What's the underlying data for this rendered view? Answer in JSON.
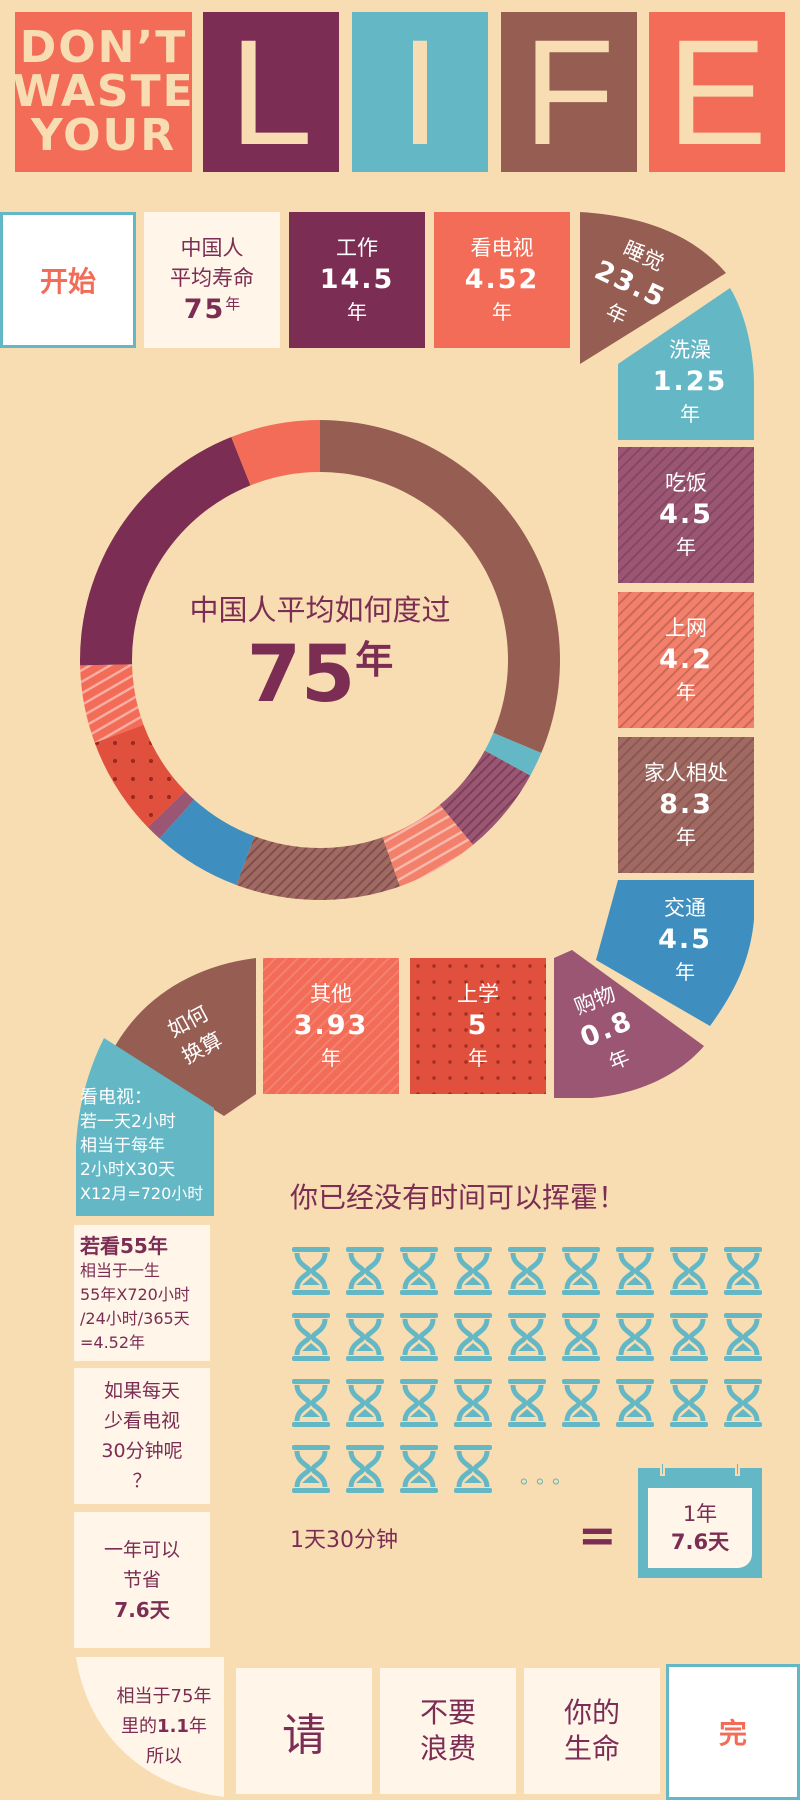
{
  "header": {
    "dont_waste_lines": [
      "DON’T",
      "WASTE",
      "YOUR"
    ],
    "letters": [
      "L",
      "I",
      "F",
      "E"
    ]
  },
  "start_label": "开始",
  "end_label": "完",
  "lifespan": {
    "line1": "中国人",
    "line2": "平均寿命",
    "value": "75",
    "unit": "年"
  },
  "segments": {
    "work": {
      "label": "工作",
      "value": "14.5",
      "unit": "年"
    },
    "tv": {
      "label": "看电视",
      "value": "4.52",
      "unit": "年"
    },
    "sleep": {
      "label": "睡觉",
      "value": "23.5",
      "unit": "年"
    },
    "bath": {
      "label": "洗澡",
      "value": "1.25",
      "unit": "年"
    },
    "eat": {
      "label": "吃饭",
      "value": "4.5",
      "unit": "年"
    },
    "internet": {
      "label": "上网",
      "value": "4.2",
      "unit": "年"
    },
    "family": {
      "label": "家人相处",
      "value": "8.3",
      "unit": "年"
    },
    "traffic": {
      "label": "交通",
      "value": "4.5",
      "unit": "年"
    },
    "shopping": {
      "label": "购物",
      "value": "0.8",
      "unit": "年"
    },
    "school": {
      "label": "上学",
      "value": "5",
      "unit": "年"
    },
    "other": {
      "label": "其他",
      "value": "3.93",
      "unit": "年"
    },
    "howto": {
      "line1": "如何",
      "line2": "换算"
    }
  },
  "donut": {
    "caption": "中国人平均如何度过",
    "value": "75",
    "unit": "年",
    "slices": [
      {
        "name": "sleep",
        "value": 23.5,
        "color": "#965d52",
        "pattern": "none"
      },
      {
        "name": "bath",
        "value": 1.25,
        "color": "#64b8c6",
        "pattern": "none"
      },
      {
        "name": "eat",
        "value": 4.5,
        "color": "#9a5672",
        "pattern": "dark"
      },
      {
        "name": "internet",
        "value": 4.2,
        "color": "#f2806a",
        "pattern": "light"
      },
      {
        "name": "family",
        "value": 8.3,
        "color": "#a06a62",
        "pattern": "dark"
      },
      {
        "name": "traffic",
        "value": 4.5,
        "color": "#3e8fbf",
        "pattern": "none"
      },
      {
        "name": "shopping",
        "value": 0.8,
        "color": "#9a5672",
        "pattern": "none"
      },
      {
        "name": "school",
        "value": 5,
        "color": "#e0503c",
        "pattern": "dots"
      },
      {
        "name": "other",
        "value": 3.93,
        "color": "#f26c57",
        "pattern": "light"
      },
      {
        "name": "work",
        "value": 14.5,
        "color": "#7c2d53",
        "pattern": "none"
      },
      {
        "name": "tv",
        "value": 4.52,
        "color": "#f26c57",
        "pattern": "none"
      }
    ]
  },
  "notes": {
    "tv_calc": [
      "看电视：",
      "若一天2小时",
      "相当于每年",
      "2小时X30天",
      "X12月=720小时"
    ],
    "watch55": {
      "title": "若看55年",
      "lines": [
        "相当于一生",
        "55年X720小时",
        "/24小时/365天",
        "=4.52年"
      ]
    },
    "less_tv": [
      "如果每天",
      "少看电视",
      "30分钟呢",
      "？"
    ],
    "save": {
      "lines": [
        "一年可以",
        "节省"
      ],
      "value": "7.6天"
    },
    "equals75": {
      "line1": "相当于75年",
      "line2_prefix": "里的",
      "line2_value": "1.1",
      "line2_suffix": "年",
      "line3": "所以"
    }
  },
  "final_words": [
    "请",
    "不要\n浪费",
    "你的\n生命"
  ],
  "hourglass_section": {
    "title": "你已经没有时间可以挥霍！",
    "rows": [
      9,
      9,
      9,
      4
    ],
    "ellipsis": "。。。",
    "caption": "1天30分钟",
    "equals": "=",
    "calendar_line1": "1年",
    "calendar_line2": "7.6天"
  }
}
